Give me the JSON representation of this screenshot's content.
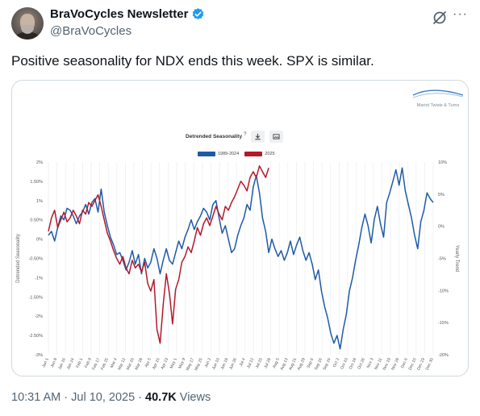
{
  "post": {
    "display_name": "BraVoCycles Newsletter",
    "handle": "@BraVoCycles",
    "text": "Positive seasonality for NDX ends this week. SPX is similar.",
    "timestamp": "10:31 AM · Jul 10, 2025",
    "separator": " · ",
    "views_count": "40.7K",
    "views_label": " Views",
    "more_label": "···"
  },
  "colors": {
    "verified": "#1d9bf0",
    "series_1989_2024": "#1f5aa6",
    "series_2025": "#b3192b"
  },
  "icons": {
    "verified": "verified-badge-icon",
    "grok": "grok-icon",
    "more": "more-icon",
    "download": "download-icon",
    "image": "image-icon",
    "info": "info-icon",
    "brand_wave": "wave-logo"
  },
  "chart_header": {
    "brand": "Mariot Twists & Turns",
    "title": "Detrended Seasonality",
    "info_glyph": "?"
  },
  "chart_data": {
    "type": "line",
    "title": "Detrended Seasonality",
    "ylabel": "Detrended Seasonality",
    "y2label": "Yearly Trend",
    "ylim": [
      -3,
      2
    ],
    "y2lim": [
      -20,
      10
    ],
    "yticks": [
      "2%",
      "1.50%",
      "1%",
      "0.50%",
      "0%",
      "-0.50%",
      "-1%",
      "-1.50%",
      "-2%",
      "-2.50%",
      "-3%"
    ],
    "y2ticks": [
      "10%",
      "5%",
      "0%",
      "-5%",
      "-10%",
      "-15%",
      "-20%"
    ],
    "xticks": [
      "Jan 1",
      "Jan 8",
      "Jan 16",
      "Jan 24",
      "Feb 1",
      "Feb 9",
      "Feb 17",
      "Feb 25",
      "Mar 4",
      "Mar 12",
      "Mar 20",
      "Mar 28",
      "Apr 5",
      "Apr 15",
      "Apr 23",
      "May 1",
      "May 9",
      "May 17",
      "May 25",
      "Jun 2",
      "Jun 10",
      "Jun 18",
      "Jun 26",
      "Jul 4",
      "Jul 12",
      "Jul 20",
      "Jul 28",
      "Aug 5",
      "Aug 13",
      "Aug 21",
      "Aug 29",
      "Sep 6",
      "Sep 16",
      "Sep 24",
      "Oct 2",
      "Oct 10",
      "Oct 18",
      "Oct 26",
      "Nov 3",
      "Nov 11",
      "Nov 19",
      "Nov 28",
      "Dec 6",
      "Dec 15",
      "Dec 23",
      "Dec 30"
    ],
    "grid": true,
    "legend_position": "top-center",
    "series": [
      {
        "name": "1989-2024",
        "color": "#1f5aa6",
        "points": [
          [
            0,
            0.1
          ],
          [
            1,
            0.2
          ],
          [
            2,
            -0.05
          ],
          [
            3,
            0.3
          ],
          [
            4,
            0.6
          ],
          [
            5,
            0.5
          ],
          [
            6,
            0.8
          ],
          [
            7,
            0.75
          ],
          [
            8,
            0.6
          ],
          [
            9,
            0.4
          ],
          [
            10,
            0.6
          ],
          [
            11,
            0.7
          ],
          [
            12,
            0.9
          ],
          [
            13,
            0.65
          ],
          [
            14,
            0.95
          ],
          [
            15,
            1.05
          ],
          [
            16,
            0.7
          ],
          [
            17,
            1.3
          ],
          [
            18,
            0.7
          ],
          [
            19,
            0.35
          ],
          [
            20,
            0.05
          ],
          [
            21,
            -0.15
          ],
          [
            22,
            -0.4
          ],
          [
            23,
            -0.35
          ],
          [
            24,
            -0.55
          ],
          [
            25,
            -0.8
          ],
          [
            26,
            -0.6
          ],
          [
            27,
            -0.3
          ],
          [
            28,
            -0.65
          ],
          [
            29,
            -0.4
          ],
          [
            30,
            -0.9
          ],
          [
            31,
            -0.5
          ],
          [
            32,
            -0.75
          ],
          [
            33,
            -0.6
          ],
          [
            34,
            -0.25
          ],
          [
            35,
            -0.5
          ],
          [
            36,
            -0.9
          ],
          [
            37,
            -0.55
          ],
          [
            38,
            -0.25
          ],
          [
            39,
            -0.55
          ],
          [
            40,
            -0.65
          ],
          [
            41,
            -0.35
          ],
          [
            42,
            -0.05
          ],
          [
            43,
            -0.25
          ],
          [
            44,
            0.05
          ],
          [
            45,
            0.25
          ],
          [
            46,
            0.5
          ],
          [
            47,
            0.25
          ],
          [
            48,
            0.45
          ],
          [
            49,
            0.6
          ],
          [
            50,
            0.8
          ],
          [
            51,
            0.7
          ],
          [
            52,
            0.5
          ],
          [
            53,
            0.9
          ],
          [
            54,
            1.0
          ],
          [
            55,
            0.55
          ],
          [
            56,
            0.15
          ],
          [
            57,
            0.35
          ],
          [
            58,
            0.0
          ],
          [
            59,
            -0.35
          ],
          [
            60,
            -0.25
          ],
          [
            61,
            0.1
          ],
          [
            62,
            0.35
          ],
          [
            63,
            0.55
          ],
          [
            64,
            0.9
          ],
          [
            65,
            0.75
          ],
          [
            66,
            1.35
          ],
          [
            67,
            1.65
          ],
          [
            68,
            1.2
          ],
          [
            69,
            0.55
          ],
          [
            70,
            0.2
          ],
          [
            71,
            -0.35
          ],
          [
            72,
            0.0
          ],
          [
            73,
            -0.25
          ],
          [
            74,
            -0.45
          ],
          [
            75,
            -0.3
          ],
          [
            76,
            -0.55
          ],
          [
            77,
            -0.35
          ],
          [
            78,
            -0.05
          ],
          [
            79,
            -0.4
          ],
          [
            80,
            -0.15
          ],
          [
            81,
            0.05
          ],
          [
            82,
            -0.3
          ],
          [
            83,
            -0.55
          ],
          [
            84,
            -0.35
          ],
          [
            85,
            -0.65
          ],
          [
            86,
            -1.05
          ],
          [
            87,
            -0.8
          ],
          [
            88,
            -1.35
          ],
          [
            89,
            -1.75
          ],
          [
            90,
            -2.05
          ],
          [
            91,
            -2.45
          ],
          [
            92,
            -2.7
          ],
          [
            93,
            -2.5
          ],
          [
            94,
            -2.85
          ],
          [
            95,
            -2.35
          ],
          [
            96,
            -1.95
          ],
          [
            97,
            -1.35
          ],
          [
            98,
            -1.0
          ],
          [
            99,
            -0.55
          ],
          [
            100,
            -0.15
          ],
          [
            101,
            0.3
          ],
          [
            102,
            0.65
          ],
          [
            103,
            0.35
          ],
          [
            104,
            -0.1
          ],
          [
            105,
            0.5
          ],
          [
            106,
            0.85
          ],
          [
            107,
            0.4
          ],
          [
            108,
            0.05
          ],
          [
            109,
            0.95
          ],
          [
            110,
            1.2
          ],
          [
            111,
            1.5
          ],
          [
            112,
            1.8
          ],
          [
            113,
            1.4
          ],
          [
            114,
            1.85
          ],
          [
            115,
            1.25
          ],
          [
            116,
            0.9
          ],
          [
            117,
            0.55
          ],
          [
            118,
            0.1
          ],
          [
            119,
            -0.25
          ],
          [
            120,
            0.45
          ],
          [
            121,
            0.75
          ],
          [
            122,
            1.2
          ],
          [
            123,
            1.05
          ],
          [
            124,
            0.95
          ]
        ]
      },
      {
        "name": "2025",
        "color": "#b3192b",
        "points": [
          [
            0,
            0.2
          ],
          [
            1,
            0.55
          ],
          [
            2,
            0.75
          ],
          [
            3,
            0.3
          ],
          [
            4,
            0.5
          ],
          [
            5,
            0.7
          ],
          [
            6,
            0.45
          ],
          [
            7,
            0.55
          ],
          [
            8,
            0.75
          ],
          [
            9,
            0.6
          ],
          [
            10,
            0.4
          ],
          [
            11,
            0.75
          ],
          [
            12,
            0.65
          ],
          [
            13,
            0.95
          ],
          [
            14,
            0.85
          ],
          [
            15,
            1.0
          ],
          [
            16,
            1.15
          ],
          [
            17,
            0.85
          ],
          [
            18,
            0.5
          ],
          [
            19,
            0.15
          ],
          [
            20,
            -0.05
          ],
          [
            21,
            -0.3
          ],
          [
            22,
            -0.5
          ],
          [
            23,
            -0.65
          ],
          [
            24,
            -0.45
          ],
          [
            25,
            -0.75
          ],
          [
            26,
            -0.9
          ],
          [
            27,
            -0.55
          ],
          [
            28,
            -0.75
          ],
          [
            29,
            -0.65
          ],
          [
            30,
            -0.85
          ],
          [
            31,
            -0.6
          ],
          [
            32,
            -1.15
          ],
          [
            33,
            -1.35
          ],
          [
            34,
            -1.05
          ],
          [
            35,
            -2.35
          ],
          [
            36,
            -2.7
          ],
          [
            37,
            -1.7
          ],
          [
            38,
            -0.9
          ],
          [
            39,
            -1.4
          ],
          [
            40,
            -2.2
          ],
          [
            41,
            -1.3
          ],
          [
            42,
            -1.05
          ],
          [
            43,
            -0.6
          ],
          [
            44,
            -0.45
          ],
          [
            45,
            -0.2
          ],
          [
            46,
            -0.35
          ],
          [
            47,
            -0.05
          ],
          [
            48,
            0.3
          ],
          [
            49,
            0.1
          ],
          [
            50,
            0.4
          ],
          [
            51,
            0.55
          ],
          [
            52,
            0.35
          ],
          [
            53,
            0.6
          ],
          [
            54,
            0.85
          ],
          [
            55,
            0.65
          ],
          [
            56,
            0.5
          ],
          [
            57,
            0.85
          ],
          [
            58,
            0.75
          ],
          [
            59,
            0.95
          ],
          [
            60,
            1.1
          ],
          [
            61,
            1.3
          ],
          [
            62,
            1.5
          ],
          [
            63,
            1.4
          ],
          [
            64,
            1.25
          ],
          [
            65,
            1.6
          ],
          [
            66,
            1.75
          ],
          [
            67,
            1.6
          ],
          [
            68,
            1.9
          ],
          [
            69,
            1.75
          ],
          [
            70,
            1.6
          ],
          [
            71,
            1.85
          ]
        ]
      }
    ],
    "x_index_max": 124
  }
}
